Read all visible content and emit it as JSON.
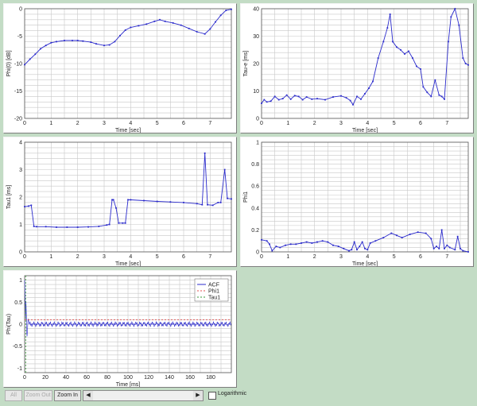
{
  "colors": {
    "series": "#2b2bcc",
    "phi1_line": "#e05050",
    "tau1_line": "#3a9a3a",
    "grid": "#c8c8c8"
  },
  "chart_data": [
    {
      "type": "line",
      "ylabel": "Phi(0) [dB]",
      "xlabel": "Time [sec]",
      "xlim": [
        0,
        7.8
      ],
      "ylim": [
        -20,
        0
      ],
      "xticks": [
        0,
        1,
        2,
        3,
        4,
        5,
        6,
        7
      ],
      "yticks": [
        -20,
        -15,
        -10,
        -5,
        0
      ],
      "grid": true,
      "series": [
        {
          "x": [
            0,
            0.2,
            0.4,
            0.6,
            0.8,
            1.0,
            1.2,
            1.5,
            1.8,
            2.0,
            2.2,
            2.5,
            2.7,
            3.0,
            3.2,
            3.4,
            3.6,
            3.8,
            4.0,
            4.3,
            4.6,
            4.9,
            5.1,
            5.3,
            5.6,
            5.9,
            6.2,
            6.5,
            6.8,
            7.0,
            7.2,
            7.4,
            7.6,
            7.8
          ],
          "y": [
            -10.2,
            -9.2,
            -8.3,
            -7.3,
            -6.7,
            -6.2,
            -6.0,
            -5.8,
            -5.8,
            -5.8,
            -5.9,
            -6.1,
            -6.4,
            -6.7,
            -6.6,
            -6.0,
            -4.9,
            -3.9,
            -3.4,
            -3.1,
            -2.8,
            -2.3,
            -2.0,
            -2.3,
            -2.6,
            -3.0,
            -3.6,
            -4.2,
            -4.6,
            -3.7,
            -2.4,
            -1.2,
            -0.3,
            -0.1
          ]
        }
      ]
    },
    {
      "type": "line",
      "ylabel": "Tau-e [ms]",
      "xlabel": "Time [sec]",
      "xlim": [
        0,
        7.8
      ],
      "ylim": [
        0,
        40
      ],
      "xticks": [
        0,
        1,
        2,
        3,
        4,
        5,
        6,
        7
      ],
      "yticks": [
        0,
        10,
        20,
        30,
        40
      ],
      "grid": true,
      "series": [
        {
          "x": [
            0,
            0.1,
            0.2,
            0.35,
            0.5,
            0.65,
            0.8,
            0.95,
            1.1,
            1.25,
            1.4,
            1.55,
            1.7,
            1.9,
            2.1,
            2.4,
            2.7,
            3.0,
            3.2,
            3.35,
            3.45,
            3.6,
            3.75,
            3.9,
            4.05,
            4.2,
            4.4,
            4.6,
            4.75,
            4.85,
            4.95,
            5.1,
            5.25,
            5.4,
            5.55,
            5.7,
            5.85,
            6.0,
            6.1,
            6.25,
            6.4,
            6.55,
            6.7,
            6.8,
            6.9,
            7.05,
            7.15,
            7.3,
            7.45,
            7.6,
            7.7,
            7.8
          ],
          "y": [
            5.5,
            6.8,
            6.0,
            6.3,
            8.0,
            6.8,
            7.2,
            8.5,
            7.0,
            8.3,
            8.0,
            6.8,
            7.8,
            7.0,
            7.2,
            6.8,
            7.8,
            8.2,
            7.5,
            6.5,
            5.0,
            8.0,
            7.0,
            9.0,
            11.0,
            13.5,
            22.0,
            28.0,
            33.0,
            38.0,
            28.0,
            26.0,
            25.0,
            23.5,
            24.5,
            22.0,
            19.0,
            18.0,
            11.5,
            9.5,
            8.0,
            14.0,
            8.5,
            8.0,
            7.0,
            28.0,
            37.0,
            40.0,
            34.0,
            22.0,
            20.0,
            19.5
          ]
        }
      ]
    },
    {
      "type": "line",
      "ylabel": "Tau1 [ms]",
      "xlabel": "Time [sec]",
      "xlim": [
        0,
        7.8
      ],
      "ylim": [
        0,
        4
      ],
      "xticks": [
        0,
        1,
        2,
        3,
        4,
        5,
        6,
        7
      ],
      "yticks": [
        0,
        1,
        2,
        3,
        4
      ],
      "grid": true,
      "series": [
        {
          "x": [
            0,
            0.15,
            0.25,
            0.35,
            0.45,
            0.8,
            1.2,
            1.6,
            2.0,
            2.4,
            2.8,
            3.1,
            3.2,
            3.3,
            3.35,
            3.45,
            3.55,
            3.7,
            3.8,
            3.9,
            4.0,
            4.5,
            5.0,
            5.5,
            6.0,
            6.5,
            6.7,
            6.8,
            6.9,
            7.1,
            7.3,
            7.4,
            7.55,
            7.65,
            7.8
          ],
          "y": [
            1.65,
            1.67,
            1.7,
            0.93,
            0.92,
            0.92,
            0.9,
            0.9,
            0.9,
            0.91,
            0.93,
            0.98,
            1.0,
            1.9,
            1.9,
            1.6,
            1.05,
            1.05,
            1.05,
            1.9,
            1.9,
            1.87,
            1.84,
            1.82,
            1.8,
            1.76,
            1.72,
            3.6,
            1.72,
            1.7,
            1.8,
            1.8,
            3.0,
            1.95,
            1.93
          ]
        }
      ]
    },
    {
      "type": "line",
      "ylabel": "Phi1",
      "xlabel": "Time [sec]",
      "xlim": [
        0,
        7.8
      ],
      "ylim": [
        0,
        1
      ],
      "xticks": [
        0,
        1,
        2,
        3,
        4,
        5,
        6,
        7
      ],
      "yticks": [
        0,
        0.2,
        0.4,
        0.6,
        0.8,
        1
      ],
      "grid": true,
      "series": [
        {
          "x": [
            0,
            0.2,
            0.3,
            0.4,
            0.55,
            0.7,
            0.9,
            1.1,
            1.3,
            1.5,
            1.7,
            1.9,
            2.1,
            2.3,
            2.5,
            2.7,
            2.9,
            3.1,
            3.3,
            3.4,
            3.5,
            3.6,
            3.7,
            3.8,
            3.9,
            4.0,
            4.1,
            4.3,
            4.6,
            4.9,
            5.1,
            5.3,
            5.6,
            5.9,
            6.2,
            6.4,
            6.5,
            6.6,
            6.7,
            6.8,
            6.9,
            7.0,
            7.1,
            7.3,
            7.4,
            7.5,
            7.6,
            7.8
          ],
          "y": [
            0.11,
            0.1,
            0.07,
            0.01,
            0.05,
            0.04,
            0.06,
            0.07,
            0.07,
            0.08,
            0.09,
            0.08,
            0.09,
            0.1,
            0.09,
            0.06,
            0.05,
            0.03,
            0.01,
            0.02,
            0.09,
            0.02,
            0.05,
            0.09,
            0.03,
            0.02,
            0.08,
            0.1,
            0.13,
            0.17,
            0.15,
            0.13,
            0.16,
            0.18,
            0.17,
            0.12,
            0.03,
            0.05,
            0.03,
            0.2,
            0.03,
            0.06,
            0.04,
            0.02,
            0.14,
            0.03,
            0.01,
            0.0
          ]
        }
      ]
    },
    {
      "type": "line",
      "ylabel": "Phi(Tau)",
      "xlabel": "Time [ms]",
      "xlim": [
        0,
        200
      ],
      "ylim": [
        -1.1,
        1.1
      ],
      "xticks": [
        0,
        20,
        40,
        60,
        80,
        100,
        120,
        140,
        160,
        180
      ],
      "yticks": [
        -1,
        -0.5,
        0,
        0.5,
        1
      ],
      "grid": true,
      "legend": {
        "position": "top-right",
        "entries": [
          "ACF",
          "Phi1",
          "Tau1"
        ]
      },
      "phi1_value": 0.1,
      "tau1_value": 1.0,
      "series": [
        {
          "name": "ACF"
        }
      ]
    }
  ],
  "toolbar": {
    "all_label": "All",
    "zoom_out_label": "Zoom Out",
    "zoom_in_label": "Zoom In",
    "scroll_left": "◀",
    "scroll_right": "▶",
    "logarithmic_label": "Logarithmic"
  }
}
